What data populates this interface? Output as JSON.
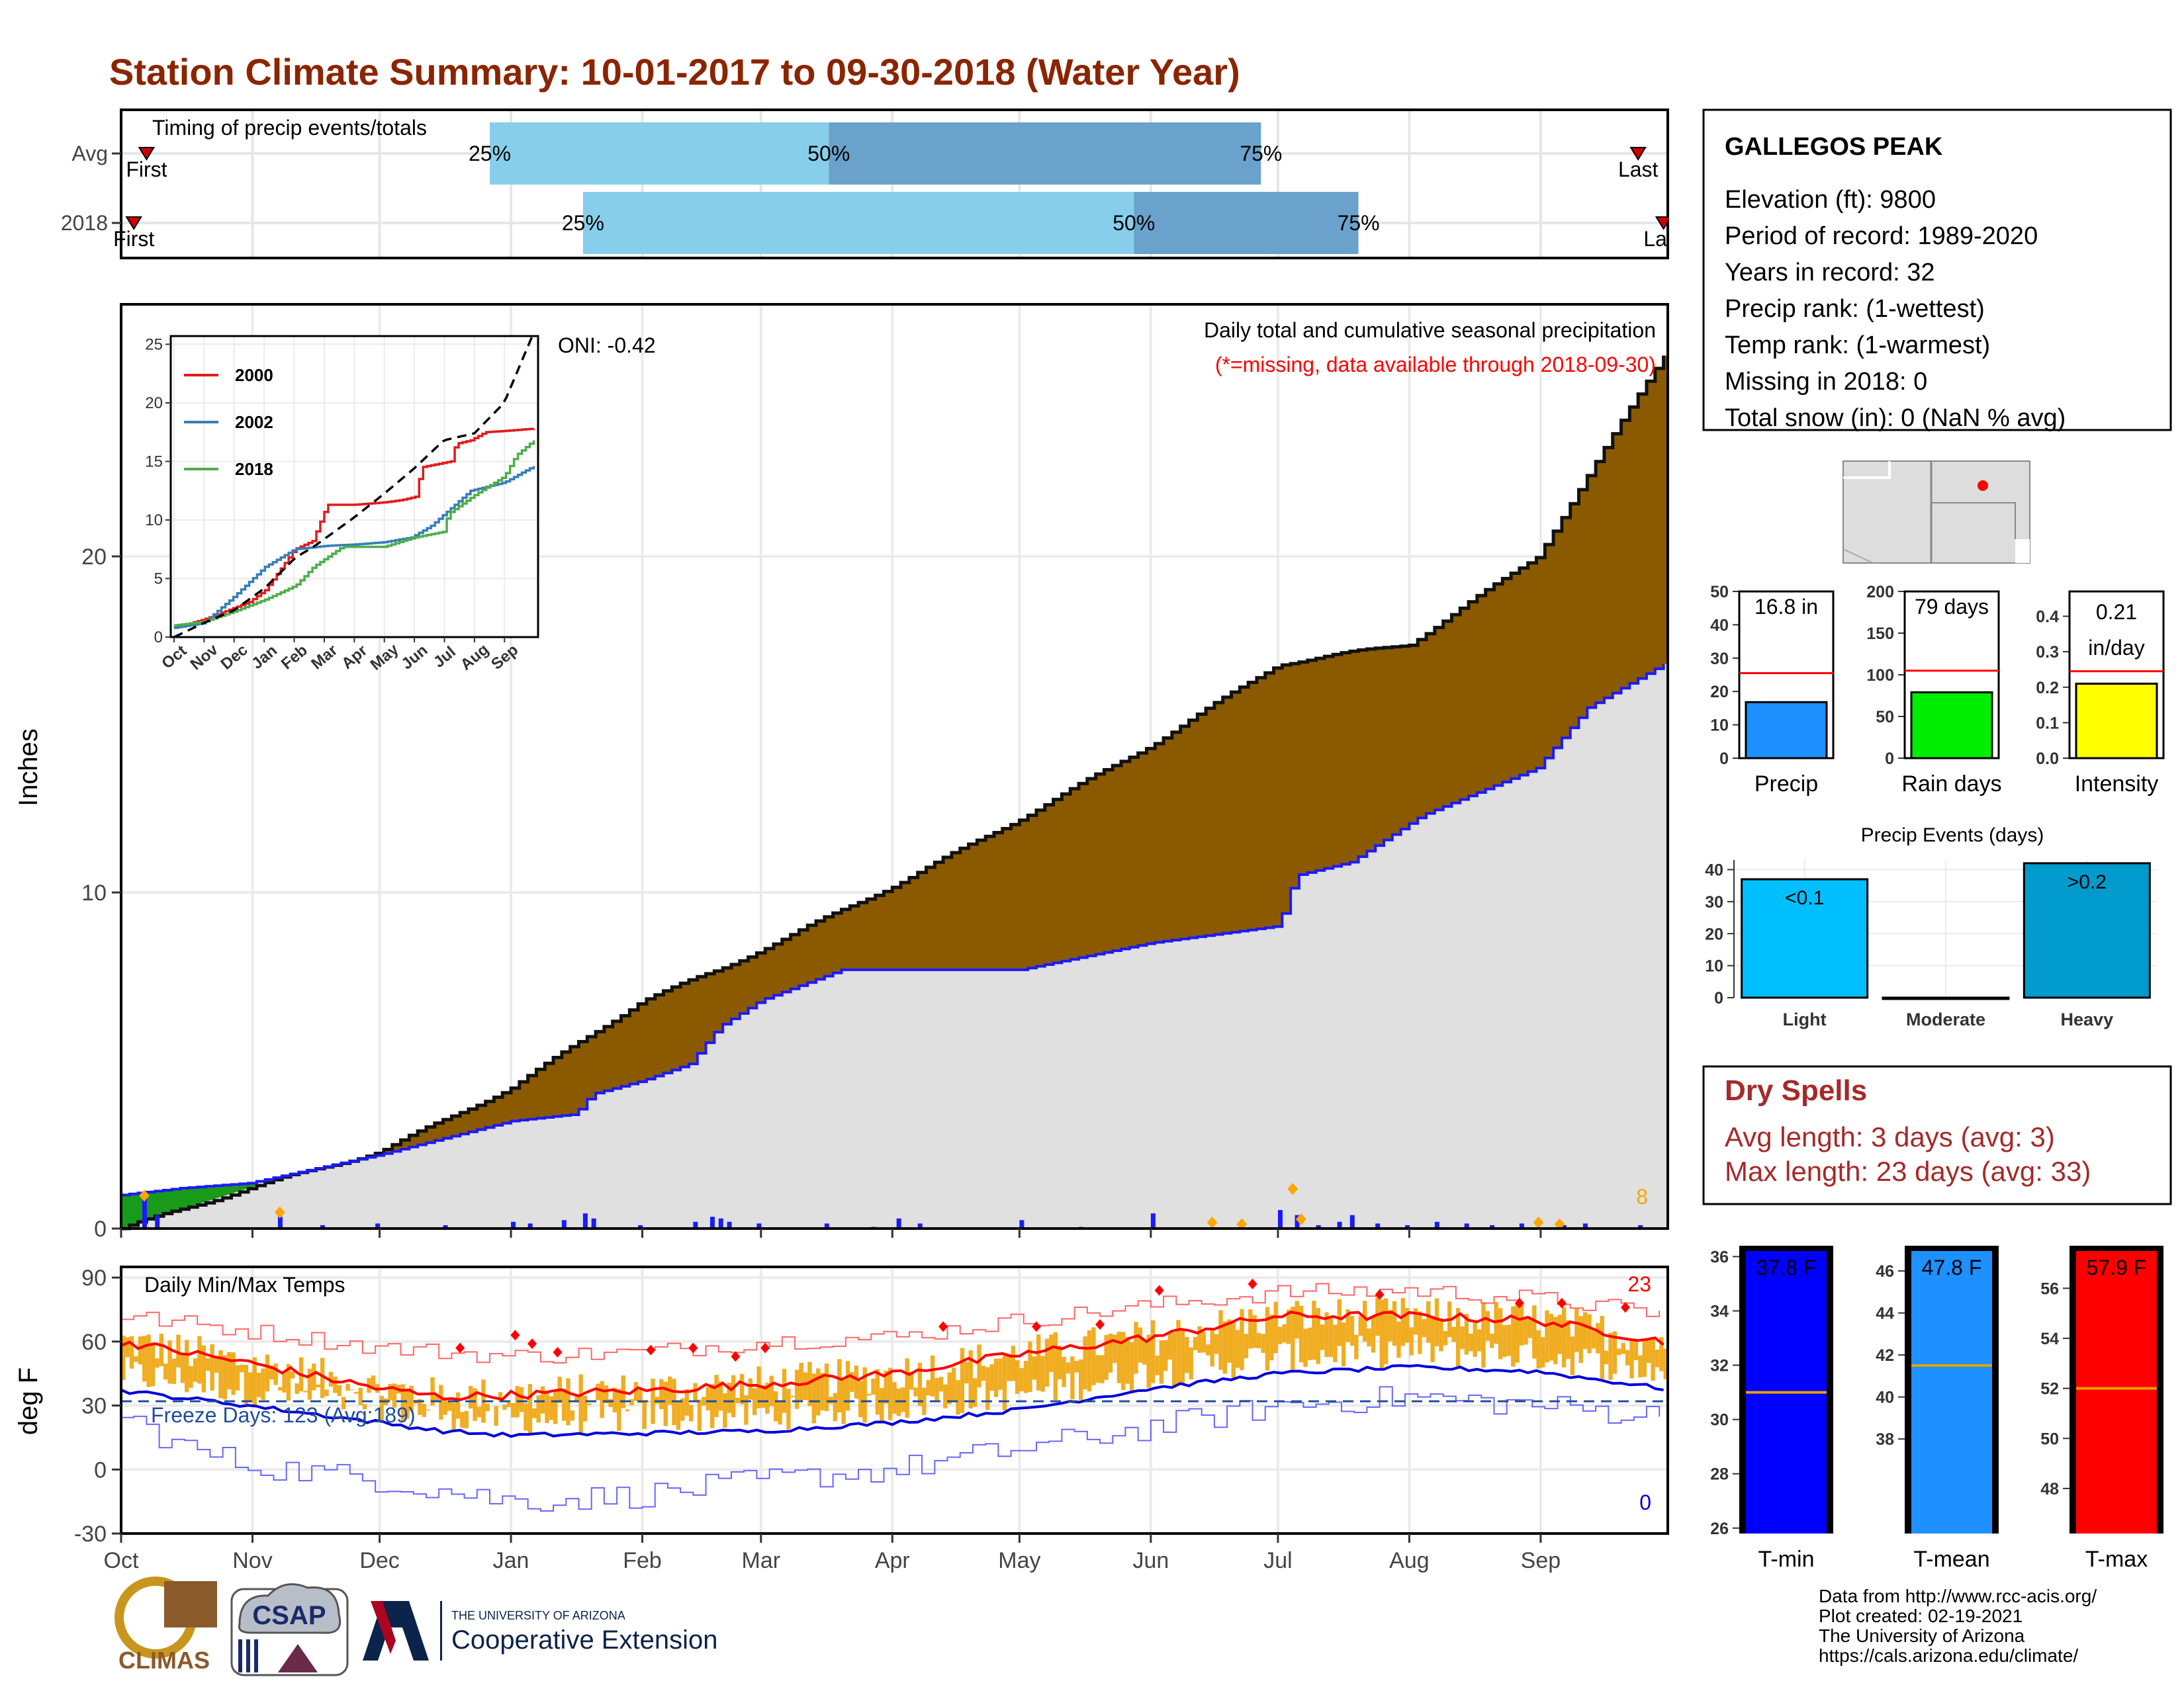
{
  "page": {
    "title": "Station Climate Summary: 10-01-2017 to 09-30-2018 (Water Year)",
    "colors": {
      "title": "#8b2500",
      "precip_fill": "#8b5a00",
      "cum_2018": "#1a1aff",
      "light_blue": "#87ceeb",
      "steel_blue": "#6aa2cc",
      "temp_band": "#f0ad22",
      "dry_spells": "#a52a2a"
    }
  },
  "timing_panel": {
    "title": "Timing of precip events/totals",
    "rows": [
      {
        "label": "Avg",
        "first_label": "First",
        "last_label": "Last",
        "first_day": 6,
        "last_day": 358,
        "p25": 87,
        "p50": 167,
        "p75": 269,
        "p25_label": "25%",
        "p50_label": "50%",
        "p75_label": "75%"
      },
      {
        "label": "2018",
        "first_label": "First",
        "last_label": "Last",
        "first_day": 3,
        "last_day": 364,
        "p25": 109,
        "p50": 239,
        "p75": 292,
        "p25_label": "25%",
        "p50_label": "50%",
        "p75_label": "75%"
      }
    ]
  },
  "precip_panel": {
    "title": "Daily total and cumulative seasonal precipitation",
    "missing_note": "(*=missing, data available through 2018-09-30)",
    "ylabel": "Inches",
    "ylim": [
      0,
      27.5
    ],
    "yticks": [
      0,
      10,
      20
    ],
    "oni_label": "ONI: -0.42",
    "freeze_count_label": "8",
    "avg_cum_knots": [
      [
        0,
        0
      ],
      [
        30,
        1.2
      ],
      [
        61,
        2.3
      ],
      [
        92,
        4.2
      ],
      [
        123,
        6.8
      ],
      [
        141,
        7.7
      ],
      [
        182,
        10.2
      ],
      [
        212,
        12.2
      ],
      [
        243,
        14.4
      ],
      [
        273,
        16.8
      ],
      [
        304,
        17.4
      ],
      [
        334,
        20
      ],
      [
        364,
        26
      ]
    ],
    "cum_2018_knots": [
      [
        0,
        1
      ],
      [
        14,
        1.2
      ],
      [
        30,
        1.35
      ],
      [
        61,
        2.2
      ],
      [
        92,
        3.2
      ],
      [
        107,
        3.4
      ],
      [
        111,
        4
      ],
      [
        123,
        4.4
      ],
      [
        134,
        4.9
      ],
      [
        141,
        6
      ],
      [
        151,
        6.8
      ],
      [
        170,
        7.7
      ],
      [
        212,
        7.7
      ],
      [
        243,
        8.5
      ],
      [
        273,
        9
      ],
      [
        277,
        10.5
      ],
      [
        290,
        10.9
      ],
      [
        307,
        12.3
      ],
      [
        334,
        13.7
      ],
      [
        346,
        15.5
      ],
      [
        364,
        16.8
      ]
    ],
    "daily_bars": [
      [
        5,
        0.9
      ],
      [
        8,
        0.4
      ],
      [
        37,
        0.35
      ],
      [
        47,
        0.1
      ],
      [
        60,
        0.15
      ],
      [
        76,
        0.1
      ],
      [
        92,
        0.2
      ],
      [
        96,
        0.15
      ],
      [
        104,
        0.25
      ],
      [
        109,
        0.45
      ],
      [
        111,
        0.3
      ],
      [
        122,
        0.1
      ],
      [
        135,
        0.2
      ],
      [
        139,
        0.35
      ],
      [
        141,
        0.3
      ],
      [
        143,
        0.2
      ],
      [
        150,
        0.15
      ],
      [
        166,
        0.15
      ],
      [
        177,
        0.05
      ],
      [
        183,
        0.3
      ],
      [
        188,
        0.15
      ],
      [
        212,
        0.25
      ],
      [
        226,
        0.05
      ],
      [
        243,
        0.45
      ],
      [
        273,
        0.55
      ],
      [
        277,
        0.4
      ],
      [
        282,
        0.1
      ],
      [
        287,
        0.2
      ],
      [
        290,
        0.4
      ],
      [
        296,
        0.15
      ],
      [
        303,
        0.1
      ],
      [
        310,
        0.2
      ],
      [
        317,
        0.15
      ],
      [
        323,
        0.1
      ],
      [
        330,
        0.15
      ],
      [
        340,
        0.1
      ],
      [
        345,
        0.15
      ],
      [
        358,
        0.1
      ]
    ],
    "diamonds": [
      [
        5,
        0.9
      ],
      [
        37,
        0.4
      ],
      [
        257,
        0.1
      ],
      [
        264,
        0.05
      ],
      [
        276,
        1.1
      ],
      [
        278,
        0.2
      ],
      [
        334,
        0.1
      ],
      [
        339,
        0.05
      ]
    ]
  },
  "inset_panel": {
    "ylim": [
      0,
      25
    ],
    "yticks": [
      "0",
      "5",
      "10",
      "15",
      "20",
      "25"
    ],
    "months": [
      "Oct",
      "Nov",
      "Dec",
      "Jan",
      "Feb",
      "Mar",
      "Apr",
      "May",
      "Jun",
      "Jul",
      "Aug",
      "Sep"
    ],
    "series": [
      {
        "name": "2000",
        "color": "#e41a1c",
        "knots": [
          [
            0,
            0.8
          ],
          [
            30,
            1.5
          ],
          [
            61,
            2.5
          ],
          [
            76,
            3
          ],
          [
            92,
            4
          ],
          [
            105,
            5.5
          ],
          [
            122,
            7.5
          ],
          [
            140,
            8.2
          ],
          [
            155,
            11.3
          ],
          [
            182,
            11.3
          ],
          [
            212,
            11.5
          ],
          [
            230,
            11.7
          ],
          [
            245,
            12
          ],
          [
            250,
            14.5
          ],
          [
            280,
            15
          ],
          [
            285,
            16.5
          ],
          [
            300,
            16.8
          ],
          [
            315,
            17.5
          ],
          [
            334,
            17.6
          ],
          [
            364,
            17.8
          ]
        ]
      },
      {
        "name": "2002",
        "color": "#377eb8",
        "knots": [
          [
            0,
            0.8
          ],
          [
            30,
            1.2
          ],
          [
            61,
            3.5
          ],
          [
            92,
            6
          ],
          [
            122,
            7.5
          ],
          [
            155,
            7.8
          ],
          [
            182,
            7.9
          ],
          [
            212,
            8.1
          ],
          [
            240,
            8.5
          ],
          [
            260,
            9.5
          ],
          [
            280,
            11
          ],
          [
            300,
            12.5
          ],
          [
            334,
            13.2
          ],
          [
            364,
            14.6
          ]
        ]
      },
      {
        "name": "2018",
        "color": "#4daf4a",
        "knots": [
          [
            0,
            1
          ],
          [
            30,
            1.3
          ],
          [
            61,
            2.2
          ],
          [
            92,
            3.2
          ],
          [
            123,
            4.4
          ],
          [
            141,
            6
          ],
          [
            170,
            7.7
          ],
          [
            212,
            7.7
          ],
          [
            243,
            8.5
          ],
          [
            273,
            9
          ],
          [
            277,
            10.5
          ],
          [
            307,
            12.3
          ],
          [
            334,
            13.7
          ],
          [
            346,
            15.5
          ],
          [
            364,
            16.8
          ]
        ]
      }
    ],
    "avg_knots": [
      [
        0,
        0
      ],
      [
        30,
        1.2
      ],
      [
        61,
        2.3
      ],
      [
        92,
        4.2
      ],
      [
        123,
        6.8
      ],
      [
        141,
        7.7
      ],
      [
        182,
        10.2
      ],
      [
        212,
        12.2
      ],
      [
        243,
        14.4
      ],
      [
        273,
        16.8
      ],
      [
        304,
        17.4
      ],
      [
        334,
        20
      ],
      [
        364,
        26
      ]
    ]
  },
  "temp_panel": {
    "title": "Daily Min/Max Temps",
    "ylabel": "deg F",
    "ylim": [
      -30,
      90
    ],
    "yticks": [
      -30,
      0,
      30,
      60,
      90
    ],
    "freeze_line": 32,
    "freeze_label": "Freeze Days: 123 (Avg:189)",
    "max_count_label": "23",
    "min_count_label": "0",
    "avg_max_knots": [
      [
        0,
        60
      ],
      [
        30,
        50
      ],
      [
        61,
        38
      ],
      [
        76,
        34
      ],
      [
        92,
        35
      ],
      [
        123,
        37
      ],
      [
        151,
        40
      ],
      [
        182,
        45
      ],
      [
        212,
        54
      ],
      [
        243,
        62
      ],
      [
        273,
        72
      ],
      [
        304,
        72
      ],
      [
        334,
        70
      ],
      [
        364,
        60
      ]
    ],
    "avg_min_knots": [
      [
        0,
        37
      ],
      [
        30,
        30
      ],
      [
        61,
        22
      ],
      [
        76,
        18
      ],
      [
        92,
        16
      ],
      [
        123,
        17
      ],
      [
        151,
        18
      ],
      [
        182,
        22
      ],
      [
        212,
        28
      ],
      [
        243,
        38
      ],
      [
        273,
        45
      ],
      [
        304,
        48
      ],
      [
        334,
        46
      ],
      [
        364,
        38
      ]
    ],
    "record_max_knots": [
      [
        0,
        72
      ],
      [
        30,
        65
      ],
      [
        61,
        57
      ],
      [
        92,
        53
      ],
      [
        123,
        55
      ],
      [
        151,
        60
      ],
      [
        182,
        62
      ],
      [
        212,
        70
      ],
      [
        243,
        77
      ],
      [
        273,
        83
      ],
      [
        304,
        84
      ],
      [
        334,
        80
      ],
      [
        364,
        73
      ]
    ],
    "record_min_knots": [
      [
        0,
        25
      ],
      [
        15,
        10
      ],
      [
        30,
        2
      ],
      [
        61,
        -5
      ],
      [
        92,
        -15
      ],
      [
        123,
        -12
      ],
      [
        151,
        -5
      ],
      [
        182,
        0
      ],
      [
        212,
        10
      ],
      [
        243,
        20
      ],
      [
        273,
        30
      ],
      [
        304,
        34
      ],
      [
        334,
        30
      ],
      [
        364,
        25
      ]
    ]
  },
  "x_axis": {
    "months": [
      "Oct",
      "Nov",
      "Dec",
      "Jan",
      "Feb",
      "Mar",
      "Apr",
      "May",
      "Jun",
      "Jul",
      "Aug",
      "Sep"
    ],
    "month_starts": [
      0,
      31,
      61,
      92,
      123,
      151,
      182,
      212,
      243,
      273,
      304,
      335
    ]
  },
  "station_box": {
    "name": "GALLEGOS PEAK",
    "lines": [
      "Elevation (ft): 9800",
      "Period of record: 1989-2020",
      "Years in record: 32",
      "Precip rank:  (1-wettest)",
      "Temp rank:  (1-warmest)",
      "Missing in 2018: 0",
      "Total snow (in): 0 (NaN % avg)"
    ]
  },
  "mini_bars": [
    {
      "xlabel": "Precip",
      "value": 16.8,
      "avg": 25.5,
      "ylim": [
        0,
        50
      ],
      "yticks": [
        "0",
        "10",
        "20",
        "30",
        "40",
        "50"
      ],
      "label_line1": "16.8 in",
      "label_line2": "",
      "color": "#1e90ff"
    },
    {
      "xlabel": "Rain days",
      "value": 79,
      "avg": 105,
      "ylim": [
        0,
        200
      ],
      "yticks": [
        "0",
        "50",
        "100",
        "150",
        "200"
      ],
      "label_line1": "79 days",
      "label_line2": "",
      "color": "#00ee00"
    },
    {
      "xlabel": "Intensity",
      "value": 0.21,
      "avg": 0.245,
      "ylim": [
        0,
        0.47
      ],
      "yticks": [
        "0.0",
        "0.1",
        "0.2",
        "0.3",
        "0.4"
      ],
      "label_line1": "0.21",
      "label_line2": "in/day",
      "color": "#ffff00"
    }
  ],
  "precip_events": {
    "title": "Precip Events (days)",
    "ylim": [
      0,
      43
    ],
    "yticks": [
      "0",
      "10",
      "20",
      "30",
      "40"
    ],
    "categories": [
      "Light",
      "Moderate",
      "Heavy"
    ],
    "values": [
      37,
      0,
      42
    ],
    "bar_labels": [
      "<0.1",
      "",
      ">0.2"
    ],
    "colors": [
      "#00bfff",
      "#008b8b",
      "#009acd"
    ]
  },
  "dry_spells": {
    "title": "Dry Spells",
    "line1": "Avg length: 3 days (avg: 3)",
    "line2": "Max length: 23 days (avg: 33)"
  },
  "temp_bars": [
    {
      "xlabel": "T-min",
      "value_label": "37.8 F",
      "avg": 31,
      "ylim": [
        25.8,
        36.4
      ],
      "yticks": [
        "26",
        "28",
        "30",
        "32",
        "34",
        "36"
      ],
      "color": "#0000ff"
    },
    {
      "xlabel": "T-mean",
      "value_label": "47.8 F",
      "avg": 41.5,
      "ylim": [
        33.5,
        47.2
      ],
      "yticks": [
        "38",
        "40",
        "42",
        "44",
        "46"
      ],
      "color": "#1e90ff"
    },
    {
      "xlabel": "T-max",
      "value_label": "57.9 F",
      "avg": 52,
      "ylim": [
        46.2,
        57.7
      ],
      "yticks": [
        "48",
        "50",
        "52",
        "54",
        "56"
      ],
      "color": "#ff0000"
    }
  ],
  "credits": {
    "line1": "Data from http://www.rcc-acis.org/",
    "line2": "Plot created: 02-19-2021",
    "line3": "The University of Arizona",
    "line4": "https://cals.arizona.edu/climate/"
  },
  "logos": {
    "climas": "CLIMAS",
    "csap": "CSAP",
    "ua_small": "THE UNIVERSITY OF ARIZONA",
    "ua_big": "Cooperative Extension"
  }
}
